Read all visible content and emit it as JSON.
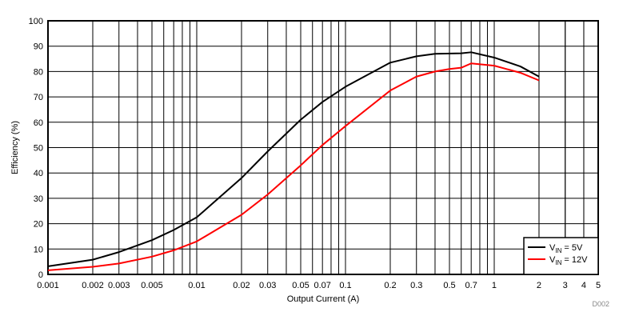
{
  "chart_data": {
    "type": "line",
    "title": "",
    "xlabel": "Output Current (A)",
    "ylabel": "Efficiency (%)",
    "xscale": "log",
    "xlim": [
      0.001,
      5
    ],
    "ylim": [
      0,
      100
    ],
    "grid": true,
    "legend_position": "bottom-right",
    "x_ticks": [
      0.001,
      0.002,
      0.003,
      0.005,
      0.01,
      0.02,
      0.03,
      0.05,
      0.07,
      0.1,
      0.2,
      0.3,
      0.5,
      0.7,
      1,
      2,
      3,
      4,
      5
    ],
    "x_tick_labels": [
      "0.001",
      "0.002",
      "0.003",
      "0.005",
      "0.01",
      "0.02",
      "0.03",
      "0.05",
      "0.07",
      "0.1",
      "0.2",
      "0.3",
      "0.5",
      "0.7",
      "1",
      "2",
      "3",
      "4",
      "5"
    ],
    "y_ticks": [
      0,
      10,
      20,
      30,
      40,
      50,
      60,
      70,
      80,
      90,
      100
    ],
    "series": [
      {
        "name": "VIN = 5V",
        "label_main": "V",
        "label_sub": "IN",
        "label_rest": " = 5V",
        "color": "#000000",
        "x": [
          0.001,
          0.002,
          0.003,
          0.005,
          0.007,
          0.01,
          0.02,
          0.03,
          0.05,
          0.07,
          0.1,
          0.2,
          0.3,
          0.4,
          0.6,
          0.7,
          1,
          1.5,
          2
        ],
        "y": [
          3.2,
          5.8,
          8.8,
          13.5,
          17.5,
          22.5,
          38,
          48.5,
          61,
          68,
          74,
          83.5,
          86,
          87,
          87.2,
          87.6,
          85.5,
          82,
          78
        ]
      },
      {
        "name": "VIN = 12V",
        "label_main": "V",
        "label_sub": "IN",
        "label_rest": " = 12V",
        "color": "#ff0000",
        "x": [
          0.001,
          0.002,
          0.003,
          0.005,
          0.007,
          0.01,
          0.02,
          0.03,
          0.05,
          0.07,
          0.1,
          0.2,
          0.3,
          0.4,
          0.5,
          0.6,
          0.7,
          1,
          1.5,
          2
        ],
        "y": [
          1.6,
          3,
          4.3,
          7,
          9.5,
          13,
          23.5,
          31.5,
          43,
          51,
          58.5,
          72.5,
          78,
          80,
          81,
          81.5,
          83.2,
          82.3,
          79.5,
          76.5
        ]
      }
    ],
    "figure_id": "D002"
  }
}
